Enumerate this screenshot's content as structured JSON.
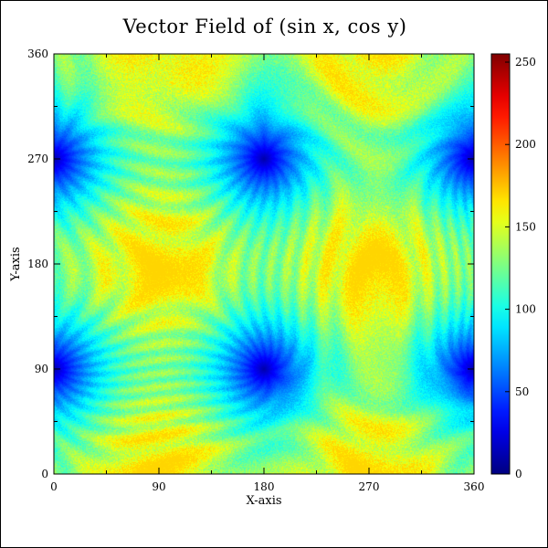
{
  "chart_data": {
    "type": "heatmap",
    "title": "Vector Field of (sin x, cos y)",
    "xlabel": "X-axis",
    "ylabel": "Y-axis",
    "xlim": [
      0,
      360
    ],
    "ylim": [
      0,
      360
    ],
    "x_ticks": [
      0,
      90,
      180,
      270,
      360
    ],
    "y_ticks": [
      0,
      90,
      180,
      270,
      360
    ],
    "colorbar": {
      "range": [
        0,
        255
      ],
      "ticks": [
        0,
        50,
        100,
        150,
        200,
        250
      ],
      "colormap": "jet"
    },
    "field": {
      "u": "sin x",
      "v": "cos y",
      "sinks_or_sources_at": [
        [
          0,
          90
        ],
        [
          180,
          90
        ],
        [
          360,
          90
        ],
        [
          0,
          270
        ],
        [
          180,
          270
        ],
        [
          360,
          270
        ]
      ],
      "min_value": 10,
      "max_value": 170
    },
    "grid": false,
    "legend": "none"
  }
}
